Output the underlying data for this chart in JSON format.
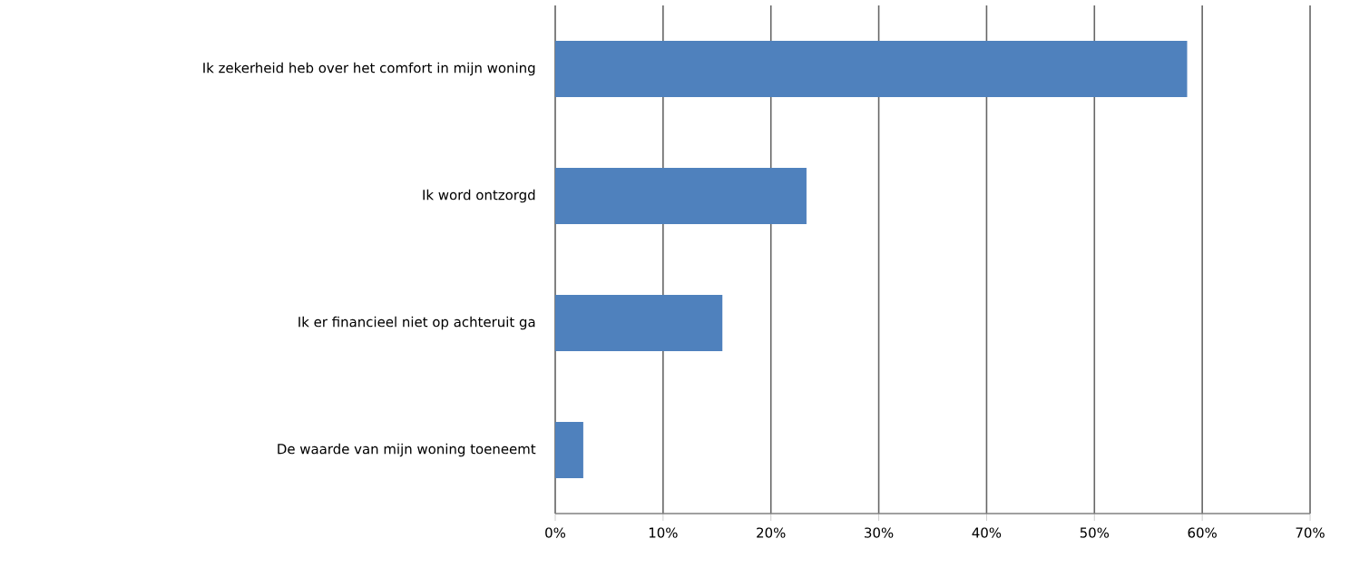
{
  "chart_data": {
    "type": "bar",
    "orientation": "horizontal",
    "categories": [
      "Ik zekerheid heb over het comfort in mijn woning",
      "Ik word ontzorgd",
      "Ik er financieel niet op achteruit ga",
      "De waarde van mijn woning toeneemt"
    ],
    "values": [
      58.6,
      23.3,
      15.5,
      2.6
    ],
    "color": "#4f81bd",
    "xlim": [
      0,
      70
    ],
    "xticks": [
      {
        "value": 0,
        "label": "0%"
      },
      {
        "value": 10,
        "label": "10%"
      },
      {
        "value": 20,
        "label": "20%"
      },
      {
        "value": 30,
        "label": "30%"
      },
      {
        "value": 40,
        "label": "40%"
      },
      {
        "value": 50,
        "label": "50%"
      },
      {
        "value": 60,
        "label": "60%"
      },
      {
        "value": 70,
        "label": "70%"
      }
    ],
    "grid": "x"
  }
}
